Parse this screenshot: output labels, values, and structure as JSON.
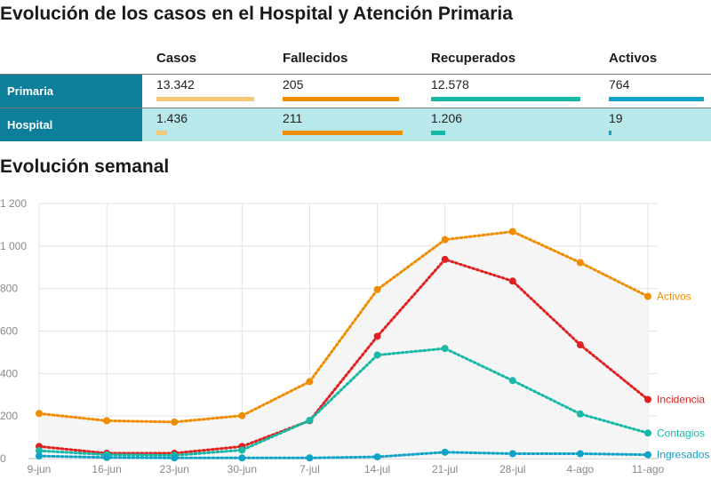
{
  "title": "Evolución de los casos en el Hospital y Atención Primaria",
  "table": {
    "columns": [
      "Casos",
      "Fallecidos",
      "Recuperados",
      "Activos"
    ],
    "bar_colors": [
      "#f6c978",
      "#f08c00",
      "#16b8a6",
      "#0fa3c8"
    ],
    "max_bar": [
      0.85,
      0.95,
      0.96,
      0.93
    ],
    "rows": [
      {
        "label": "Primaria",
        "values": [
          "13.342",
          "205",
          "12.578",
          "764"
        ],
        "numbers": [
          13342,
          205,
          12578,
          764
        ]
      },
      {
        "label": "Hospital",
        "values": [
          "1.436",
          "211",
          "1.206",
          "19"
        ],
        "numbers": [
          1436,
          211,
          1206,
          19
        ]
      }
    ]
  },
  "chart_title": "Evolución semanal",
  "chart_data": {
    "type": "line",
    "categories": [
      "9-jun",
      "16-jun",
      "23-jun",
      "30-jun",
      "7-jul",
      "14-jul",
      "21-jul",
      "28-jul",
      "4-ago",
      "11-ago"
    ],
    "ylim": [
      0,
      1200
    ],
    "yticks": [
      0,
      200,
      400,
      600,
      800,
      1000,
      1200
    ],
    "ytick_labels": [
      "0",
      "200",
      "400",
      "600",
      "800",
      "1 000",
      "1 200"
    ],
    "grid": true,
    "series": [
      {
        "name": "Activos",
        "color": "#f08c00",
        "values": [
          212,
          178,
          172,
          202,
          362,
          795,
          1030,
          1068,
          922,
          763
        ]
      },
      {
        "name": "Incidencia",
        "color": "#e02020",
        "values": [
          57,
          25,
          25,
          57,
          178,
          575,
          937,
          835,
          535,
          278
        ]
      },
      {
        "name": "Contagios",
        "color": "#16b8a6",
        "values": [
          37,
          18,
          15,
          40,
          180,
          487,
          518,
          367,
          210,
          120
        ]
      },
      {
        "name": "Ingresados",
        "color": "#0fa3c8",
        "values": [
          12,
          5,
          3,
          3,
          3,
          8,
          30,
          23,
          23,
          18
        ]
      }
    ]
  }
}
